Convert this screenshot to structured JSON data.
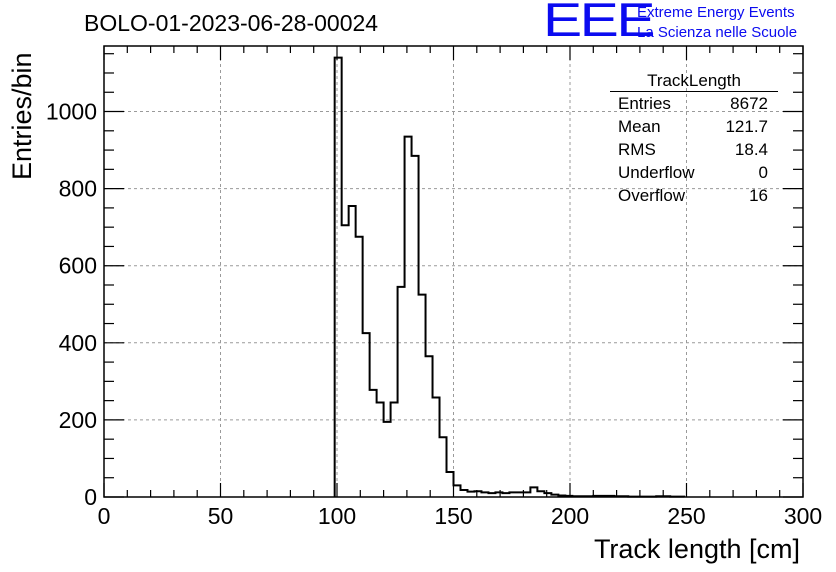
{
  "header": {
    "title": "BOLO-01-2023-06-28-00024",
    "logo_text": "EEE",
    "logo_line1": "Extreme Energy Events",
    "logo_line2": "La Scienza nelle Scuole"
  },
  "stats": {
    "title": "TrackLength",
    "rows": [
      {
        "label": "Entries",
        "value": "8672"
      },
      {
        "label": "Mean",
        "value": "121.7"
      },
      {
        "label": "RMS",
        "value": "18.4"
      },
      {
        "label": "Underflow",
        "value": "0"
      },
      {
        "label": "Overflow",
        "value": "16"
      }
    ]
  },
  "chart_data": {
    "type": "histogram",
    "title": "BOLO-01-2023-06-28-00024",
    "xlabel": "Track length [cm]",
    "ylabel": "Entries/bin",
    "xlim": [
      0,
      300
    ],
    "ylim": [
      0,
      1170
    ],
    "xticks": [
      0,
      50,
      100,
      150,
      200,
      250,
      300
    ],
    "yticks": [
      0,
      200,
      400,
      600,
      800,
      1000
    ],
    "grid": true,
    "bin_width": 3,
    "bin_edges_start": 99,
    "values": [
      1140,
      705,
      755,
      675,
      425,
      278,
      245,
      195,
      245,
      545,
      935,
      885,
      525,
      365,
      258,
      155,
      65,
      30,
      18,
      14,
      15,
      12,
      10,
      12,
      10,
      12,
      12,
      12,
      25,
      15,
      10,
      6,
      4,
      3,
      2,
      2,
      2,
      3,
      3,
      3,
      2,
      2,
      1,
      1,
      1,
      1,
      2,
      2,
      1,
      1
    ]
  }
}
